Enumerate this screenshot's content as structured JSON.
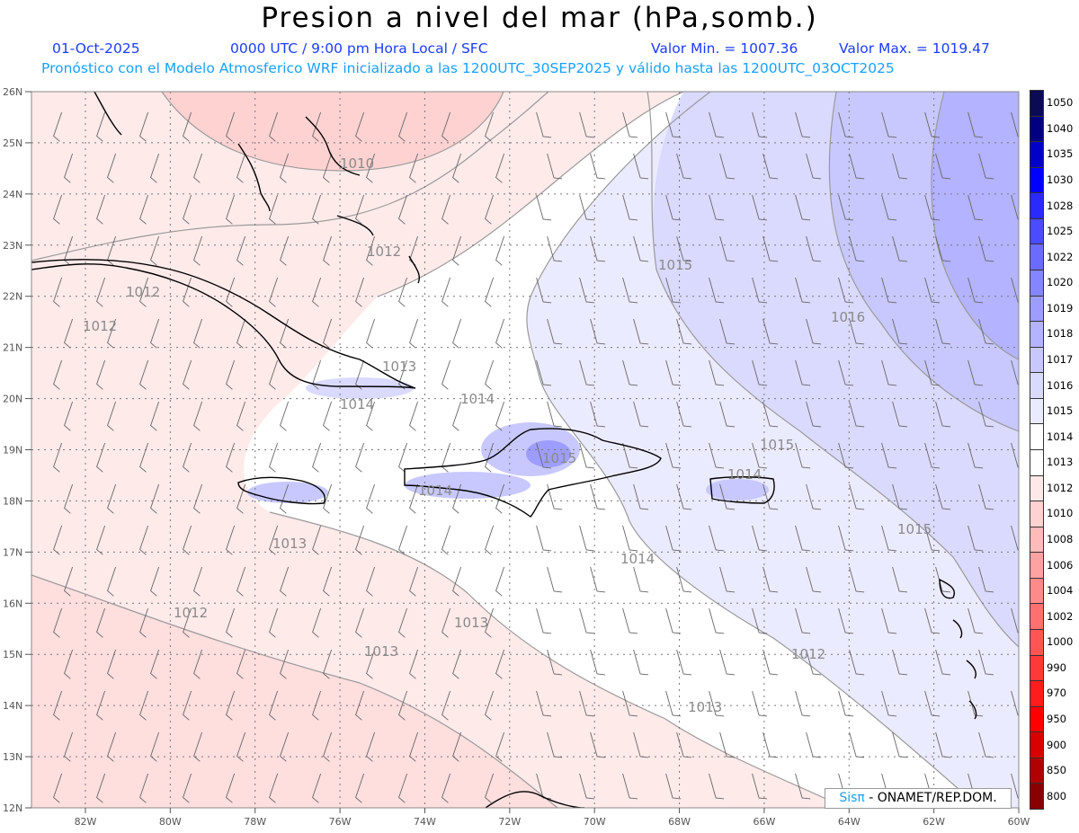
{
  "header": {
    "title": "Presion a nivel del mar (hPa,somb.)",
    "date": "01-Oct-2025",
    "time_info": "0000 UTC / 9:00 pm Hora Local / SFC",
    "min_label": "Valor Min. = 1007.36",
    "max_label": "Valor Max. = 1019.47",
    "model_info": "Pronóstico con el Modelo Atmosferico WRF inicializado a las 1200UTC_30SEP2025 y válido hasta las  1200UTC_03OCT2025"
  },
  "map": {
    "lat_labels": [
      "26N",
      "25N",
      "24N",
      "23N",
      "22N",
      "21N",
      "20N",
      "19N",
      "18N",
      "17N",
      "16N",
      "15N",
      "14N",
      "13N",
      "12N"
    ],
    "lon_labels": [
      "82W",
      "80W",
      "78W",
      "76W",
      "74W",
      "72W",
      "70W",
      "68W",
      "66W",
      "64W",
      "62W",
      "60W"
    ],
    "contour_labels": [
      {
        "text": "1010"
      },
      {
        "text": "1012"
      },
      {
        "text": "1012"
      },
      {
        "text": "1012"
      },
      {
        "text": "1013"
      },
      {
        "text": "1014"
      },
      {
        "text": "1014"
      },
      {
        "text": "1015"
      },
      {
        "text": "1016"
      },
      {
        "text": "1015"
      },
      {
        "text": "1015"
      },
      {
        "text": "1013"
      },
      {
        "text": "1014"
      },
      {
        "text": "1015"
      },
      {
        "text": "1013"
      },
      {
        "text": "1014"
      },
      {
        "text": "1012"
      },
      {
        "text": "1013"
      },
      {
        "text": "1012"
      },
      {
        "text": "1014"
      },
      {
        "text": "1013"
      }
    ]
  },
  "colorbar": {
    "levels": [
      "1050",
      "1040",
      "1035",
      "1030",
      "1028",
      "1025",
      "1022",
      "1020",
      "1019",
      "1018",
      "1017",
      "1016",
      "1015",
      "1014",
      "1013",
      "1012",
      "1010",
      "1008",
      "1006",
      "1004",
      "1002",
      "1000",
      "990",
      "970",
      "950",
      "900",
      "850",
      "800"
    ],
    "colors": [
      "#0a0a55",
      "#000080",
      "#0000c8",
      "#0000ff",
      "#2a2aff",
      "#4b4bff",
      "#6b6bff",
      "#8585ff",
      "#9d9dff",
      "#b3b3ff",
      "#c8c8ff",
      "#dadaff",
      "#ebebff",
      "#ffffff",
      "#ffffff",
      "#ffe8e8",
      "#ffd2d2",
      "#ffbaba",
      "#ffa2a2",
      "#ff8a8a",
      "#ff7070",
      "#ff5555",
      "#ff3838",
      "#ff1c1c",
      "#ff0000",
      "#d80000",
      "#b00000",
      "#880000"
    ]
  },
  "credit": {
    "logo": "Sisπ",
    "text": " - ONAMET/REP.DOM."
  }
}
